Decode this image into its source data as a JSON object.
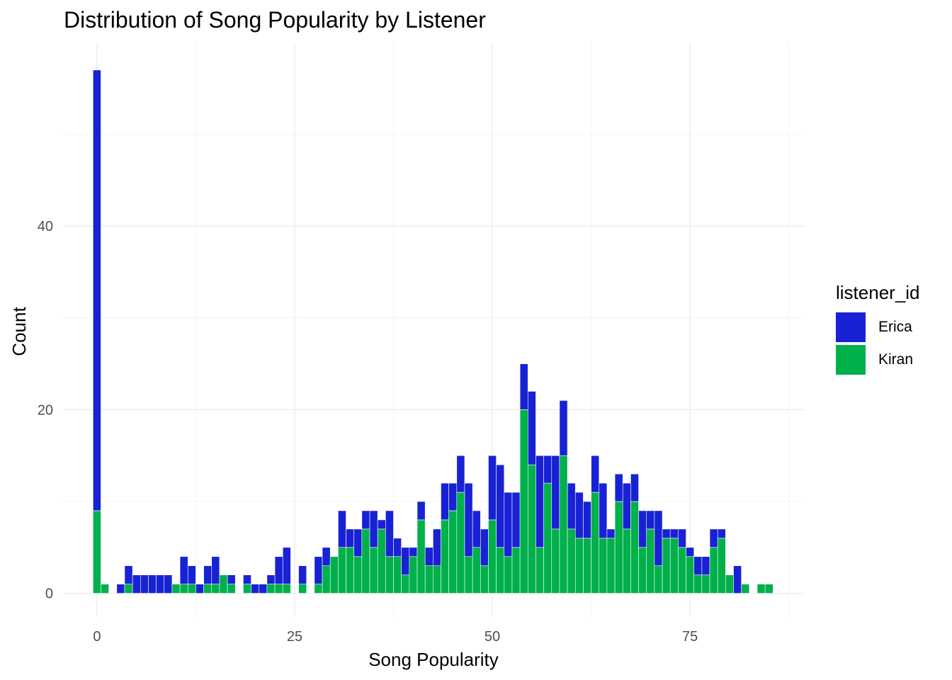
{
  "chart_data": {
    "type": "bar",
    "stacked": true,
    "title": "Distribution of Song Popularity by Listener",
    "xlabel": "Song Popularity",
    "ylabel": "Count",
    "xlim": [
      -4.2,
      89.5
    ],
    "ylim": [
      -2.5,
      60
    ],
    "x_ticks": [
      0,
      25,
      50,
      75
    ],
    "y_ticks": [
      0,
      20,
      40
    ],
    "grid": true,
    "legend": {
      "title": "listener_id",
      "position": "right",
      "entries": [
        {
          "name": "Erica",
          "color": "#1822D4"
        },
        {
          "name": "Kiran",
          "color": "#00B04B"
        }
      ]
    },
    "x": [
      0,
      1,
      2,
      3,
      4,
      5,
      6,
      7,
      8,
      9,
      10,
      11,
      12,
      13,
      14,
      15,
      16,
      17,
      18,
      19,
      20,
      21,
      22,
      23,
      24,
      25,
      26,
      27,
      28,
      29,
      30,
      31,
      32,
      33,
      34,
      35,
      36,
      37,
      38,
      39,
      40,
      41,
      42,
      43,
      44,
      45,
      46,
      47,
      48,
      49,
      50,
      51,
      52,
      53,
      54,
      55,
      56,
      57,
      58,
      59,
      60,
      61,
      62,
      63,
      64,
      65,
      66,
      67,
      68,
      69,
      70,
      71,
      72,
      73,
      74,
      75,
      76,
      77,
      78,
      79,
      80,
      81,
      82,
      83,
      84,
      85
    ],
    "series": [
      {
        "name": "Kiran",
        "color": "#00B04B",
        "values": [
          9,
          1,
          0,
          0,
          1,
          0,
          0,
          0,
          0,
          0,
          1,
          1,
          1,
          0,
          1,
          1,
          2,
          1,
          0,
          1,
          0,
          0,
          1,
          1,
          1,
          0,
          1,
          0,
          1,
          3,
          4,
          5,
          5,
          4,
          7,
          5,
          7,
          4,
          4,
          2,
          4,
          8,
          3,
          3,
          8,
          9,
          11,
          4,
          5,
          3,
          8,
          5,
          4,
          5,
          20,
          14,
          5,
          12,
          7,
          15,
          7,
          6,
          6,
          11,
          6,
          6,
          10,
          7,
          10,
          5,
          7,
          3,
          6,
          6,
          5,
          4,
          2,
          2,
          5,
          6,
          2,
          0,
          1,
          0,
          1,
          1
        ]
      },
      {
        "name": "Erica",
        "color": "#1822D4",
        "values": [
          48,
          0,
          0,
          1,
          2,
          2,
          2,
          2,
          2,
          2,
          0,
          3,
          2,
          1,
          2,
          3,
          0,
          1,
          0,
          1,
          1,
          1,
          1,
          3,
          4,
          0,
          2,
          0,
          3,
          2,
          0,
          4,
          2,
          3,
          2,
          4,
          1,
          5,
          2,
          3,
          1,
          2,
          2,
          4,
          4,
          3,
          4,
          8,
          4,
          4,
          7,
          9,
          7,
          6,
          5,
          8,
          10,
          3,
          8,
          6,
          5,
          5,
          4,
          4,
          6,
          1,
          3,
          5,
          3,
          4,
          2,
          6,
          1,
          1,
          2,
          1,
          2,
          2,
          2,
          1,
          0,
          3,
          0,
          0,
          0,
          0
        ]
      }
    ]
  }
}
